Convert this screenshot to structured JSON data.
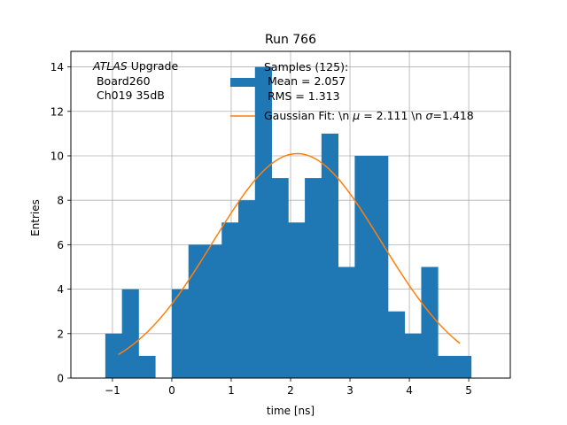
{
  "chart_data": {
    "type": "bar",
    "title": "Run 766",
    "xlabel": "time [ns]",
    "ylabel": "Entries",
    "xlim": [
      -1.7,
      5.7
    ],
    "ylim": [
      0,
      14.7
    ],
    "xticks": [
      -1,
      0,
      1,
      2,
      3,
      4,
      5
    ],
    "yticks": [
      0,
      2,
      4,
      6,
      8,
      10,
      12,
      14
    ],
    "grid": true,
    "legend_location": "top-right",
    "colors": {
      "histogram": "#1f77b4",
      "fit": "#ff7f0e"
    },
    "annotation": {
      "italic": "ATLAS",
      "line1_rest": " Upgrade",
      "line2": " Board260",
      "line3": " Ch019 35dB"
    },
    "histogram": {
      "legend_line1": "Samples (125):",
      "legend_line2": " Mean = 2.057",
      "legend_line3": " RMS = 1.313",
      "bins": [
        {
          "x0": -1.12,
          "x1": -0.84,
          "count": 2
        },
        {
          "x0": -0.84,
          "x1": -0.56,
          "count": 4
        },
        {
          "x0": -0.56,
          "x1": -0.28,
          "count": 1
        },
        {
          "x0": -0.28,
          "x1": 0.0,
          "count": 0
        },
        {
          "x0": 0.0,
          "x1": 0.28,
          "count": 4
        },
        {
          "x0": 0.28,
          "x1": 0.56,
          "count": 6
        },
        {
          "x0": 0.56,
          "x1": 0.84,
          "count": 6
        },
        {
          "x0": 0.84,
          "x1": 1.12,
          "count": 7
        },
        {
          "x0": 1.12,
          "x1": 1.4,
          "count": 8
        },
        {
          "x0": 1.4,
          "x1": 1.68,
          "count": 14
        },
        {
          "x0": 1.68,
          "x1": 1.96,
          "count": 9
        },
        {
          "x0": 1.96,
          "x1": 2.24,
          "count": 7
        },
        {
          "x0": 2.24,
          "x1": 2.52,
          "count": 9
        },
        {
          "x0": 2.52,
          "x1": 2.8,
          "count": 11
        },
        {
          "x0": 2.8,
          "x1": 3.08,
          "count": 5
        },
        {
          "x0": 3.08,
          "x1": 3.36,
          "count": 10
        },
        {
          "x0": 3.36,
          "x1": 3.64,
          "count": 10
        },
        {
          "x0": 3.64,
          "x1": 3.92,
          "count": 3
        },
        {
          "x0": 3.92,
          "x1": 4.2,
          "count": 2
        },
        {
          "x0": 4.2,
          "x1": 4.48,
          "count": 5
        },
        {
          "x0": 4.48,
          "x1": 4.76,
          "count": 1
        },
        {
          "x0": 4.76,
          "x1": 5.04,
          "count": 1
        }
      ]
    },
    "fit": {
      "legend_pre": "Gaussian Fit: \\n ",
      "legend_mu": "μ",
      "legend_mid": " = 2.111 \\n ",
      "legend_sigma": "σ",
      "legend_post": "=1.418",
      "amplitude": 10.1,
      "mu": 2.111,
      "sigma": 1.418,
      "x_range": [
        -0.9,
        4.85
      ]
    }
  }
}
